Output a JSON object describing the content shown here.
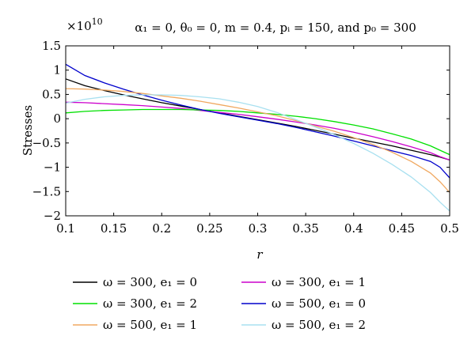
{
  "chart_data": {
    "type": "line",
    "title": "α₁ = 0, θ₀ = 0, m = 0.4, pᵢ = 150, and p₀ = 300",
    "xlabel": "r",
    "ylabel": "Stresses",
    "y_multiplier": "×10",
    "y_multiplier_exp": "10",
    "xlim": [
      0.1,
      0.5
    ],
    "ylim": [
      -2,
      1.5
    ],
    "grid": false,
    "x_ticks": [
      0.1,
      0.15,
      0.2,
      0.25,
      0.3,
      0.35,
      0.4,
      0.45,
      0.5
    ],
    "x_tick_labels": [
      "0.1",
      "0.15",
      "0.2",
      "0.25",
      "0.3",
      "0.35",
      "0.4",
      "0.45",
      "0.5"
    ],
    "y_ticks": [
      -2,
      -1.5,
      -1,
      -0.5,
      0,
      0.5,
      1,
      1.5
    ],
    "y_tick_labels": [
      "−2",
      "−1.5",
      "−1",
      "−0.5",
      "0",
      "0.5",
      "1",
      "1.5"
    ],
    "x": [
      0.1,
      0.12,
      0.14,
      0.16,
      0.18,
      0.2,
      0.22,
      0.24,
      0.26,
      0.28,
      0.3,
      0.32,
      0.34,
      0.36,
      0.38,
      0.4,
      0.42,
      0.44,
      0.46,
      0.48,
      0.49,
      0.5
    ],
    "series": [
      {
        "name": "ω = 300, e₁ = 0",
        "color": "#000000",
        "values": [
          0.82,
          0.68,
          0.58,
          0.49,
          0.41,
          0.33,
          0.26,
          0.19,
          0.12,
          0.05,
          -0.02,
          -0.09,
          -0.16,
          -0.24,
          -0.32,
          -0.4,
          -0.48,
          -0.56,
          -0.65,
          -0.74,
          -0.79,
          -0.85
        ]
      },
      {
        "name": "ω = 300, e₁ = 1",
        "color": "#cc00cc",
        "values": [
          0.34,
          0.33,
          0.31,
          0.29,
          0.27,
          0.24,
          0.21,
          0.17,
          0.13,
          0.09,
          0.04,
          -0.01,
          -0.07,
          -0.13,
          -0.2,
          -0.28,
          -0.37,
          -0.47,
          -0.58,
          -0.7,
          -0.78,
          -0.85
        ]
      },
      {
        "name": "ω = 300, e₁ = 2",
        "color": "#00e000",
        "values": [
          0.12,
          0.15,
          0.17,
          0.18,
          0.19,
          0.19,
          0.19,
          0.18,
          0.17,
          0.15,
          0.12,
          0.09,
          0.05,
          0.0,
          -0.06,
          -0.13,
          -0.21,
          -0.31,
          -0.42,
          -0.56,
          -0.65,
          -0.74
        ]
      },
      {
        "name": "ω = 500, e₁ = 0",
        "color": "#0000cc",
        "values": [
          1.12,
          0.89,
          0.74,
          0.61,
          0.49,
          0.38,
          0.28,
          0.19,
          0.11,
          0.04,
          -0.03,
          -0.1,
          -0.18,
          -0.27,
          -0.36,
          -0.46,
          -0.56,
          -0.66,
          -0.76,
          -0.88,
          -1.0,
          -1.22
        ]
      },
      {
        "name": "ω = 500, e₁ = 1",
        "color": "#f0a860",
        "values": [
          0.62,
          0.61,
          0.59,
          0.56,
          0.52,
          0.47,
          0.42,
          0.36,
          0.29,
          0.22,
          0.14,
          0.06,
          -0.04,
          -0.15,
          -0.26,
          -0.39,
          -0.53,
          -0.69,
          -0.88,
          -1.12,
          -1.3,
          -1.52
        ]
      },
      {
        "name": "ω = 500, e₁ = 2",
        "color": "#a8e0f0",
        "values": [
          0.32,
          0.4,
          0.45,
          0.48,
          0.49,
          0.49,
          0.48,
          0.45,
          0.41,
          0.34,
          0.25,
          0.13,
          -0.02,
          -0.17,
          -0.33,
          -0.51,
          -0.71,
          -0.94,
          -1.2,
          -1.52,
          -1.72,
          -1.9
        ]
      }
    ],
    "legend_position": "bottom"
  }
}
